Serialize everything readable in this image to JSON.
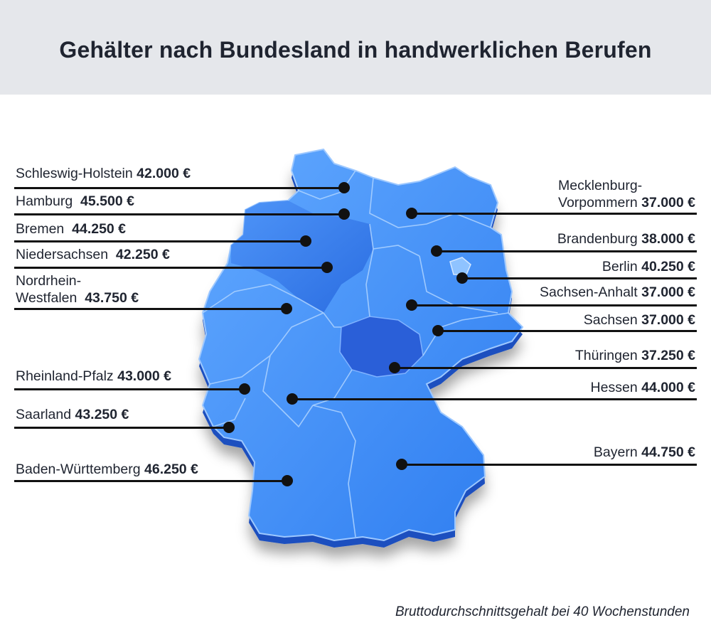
{
  "title": "Gehälter nach Bundesland in handwerklichen Berufen",
  "footnote": "Bruttodurchschnittsgehalt bei 40 Wochenstunden",
  "currency": "€",
  "colors": {
    "state_base": "#3f8cf0",
    "state_highlight": "#2f6fe0",
    "state_dark": "#1f55c9",
    "header_bg": "#e5e7eb"
  },
  "states": {
    "schleswig_holstein": {
      "name": "Schleswig-Holstein",
      "salary": "42.000 €"
    },
    "hamburg": {
      "name": "Hamburg",
      "salary": "45.500 €"
    },
    "bremen": {
      "name": "Bremen",
      "salary": "44.250 €"
    },
    "niedersachsen": {
      "name": "Niedersachsen",
      "salary": "42.250 €"
    },
    "nrw": {
      "name_1": "Nordrhein-",
      "name_2": "Westfalen",
      "salary": "43.750 €"
    },
    "rheinland_pfalz": {
      "name": "Rheinland-Pfalz",
      "salary": "43.000 €"
    },
    "saarland": {
      "name": "Saarland",
      "salary": "43.250 €"
    },
    "baden_wuerttemberg": {
      "name": "Baden-Württemberg",
      "salary": "46.250 €"
    },
    "mecklenburg_vorpommern": {
      "name_1": "Mecklenburg-",
      "name_2": "Vorpommern",
      "salary": "37.000 €"
    },
    "brandenburg": {
      "name": "Brandenburg",
      "salary": "38.000 €"
    },
    "berlin": {
      "name": "Berlin",
      "salary": "40.250 €"
    },
    "sachsen_anhalt": {
      "name": "Sachsen-Anhalt",
      "salary": "37.000 €"
    },
    "sachsen": {
      "name": "Sachsen",
      "salary": "37.000 €"
    },
    "thueringen": {
      "name": "Thüringen",
      "salary": "37.250 €"
    },
    "hessen": {
      "name": "Hessen",
      "salary": "44.000 €"
    },
    "bayern": {
      "name": "Bayern",
      "salary": "44.750 €"
    }
  }
}
